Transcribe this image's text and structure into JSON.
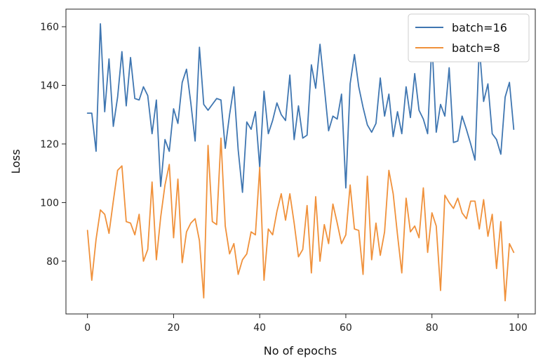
{
  "chart_data": {
    "type": "line",
    "xlabel": "No of epochs",
    "ylabel": "Loss",
    "xlim": [
      -5,
      104
    ],
    "ylim": [
      62,
      166
    ],
    "xticks": [
      0,
      20,
      40,
      60,
      80,
      100
    ],
    "yticks": [
      80,
      100,
      120,
      140,
      160
    ],
    "grid": false,
    "legend_position": "top-right",
    "series": [
      {
        "name": "batch=16",
        "color": "#3f76b1",
        "x": [
          0,
          1,
          2,
          3,
          4,
          5,
          6,
          7,
          8,
          9,
          10,
          11,
          12,
          13,
          14,
          15,
          16,
          17,
          18,
          19,
          20,
          21,
          22,
          23,
          24,
          25,
          26,
          27,
          28,
          29,
          30,
          31,
          32,
          33,
          34,
          35,
          36,
          37,
          38,
          39,
          40,
          41,
          42,
          43,
          44,
          45,
          46,
          47,
          48,
          49,
          50,
          51,
          52,
          53,
          54,
          55,
          56,
          57,
          58,
          59,
          60,
          61,
          62,
          63,
          64,
          65,
          66,
          67,
          68,
          69,
          70,
          71,
          72,
          73,
          74,
          75,
          76,
          77,
          78,
          79,
          80,
          81,
          82,
          83,
          84,
          85,
          86,
          87,
          88,
          89,
          90,
          91,
          92,
          93,
          94,
          95,
          96,
          97,
          98,
          99
        ],
        "values": [
          130.5,
          130.5,
          117.5,
          161,
          131,
          149,
          126,
          136,
          151.5,
          133,
          149.5,
          135.5,
          135,
          139.5,
          136.5,
          123.5,
          135,
          105.5,
          121.5,
          117.5,
          132,
          127,
          141,
          145.5,
          134,
          121,
          153,
          133.5,
          131.5,
          133.5,
          135.5,
          135,
          118.5,
          130,
          139.5,
          118,
          103.5,
          127.5,
          125,
          131,
          112,
          138,
          123.5,
          128,
          134,
          130,
          128,
          143.5,
          121.5,
          133,
          122,
          123,
          147,
          139,
          154,
          139.5,
          124.5,
          129.5,
          128.5,
          137,
          105,
          140.5,
          150.5,
          139.5,
          132.5,
          126.5,
          124,
          127,
          142.5,
          129.5,
          137,
          122.5,
          131,
          123.5,
          139.5,
          129,
          144,
          131.5,
          128.5,
          123.5,
          155,
          124,
          133.5,
          129.5,
          146,
          120.5,
          121,
          129.5,
          125,
          120,
          114.5,
          153.5,
          134.5,
          140.5,
          123.5,
          121.5,
          116.5,
          136,
          141,
          125
        ]
      },
      {
        "name": "batch=8",
        "color": "#f0913b",
        "x": [
          0,
          1,
          2,
          3,
          4,
          5,
          6,
          7,
          8,
          9,
          10,
          11,
          12,
          13,
          14,
          15,
          16,
          17,
          18,
          19,
          20,
          21,
          22,
          23,
          24,
          25,
          26,
          27,
          28,
          29,
          30,
          31,
          32,
          33,
          34,
          35,
          36,
          37,
          38,
          39,
          40,
          41,
          42,
          43,
          44,
          45,
          46,
          47,
          48,
          49,
          50,
          51,
          52,
          53,
          54,
          55,
          56,
          57,
          58,
          59,
          60,
          61,
          62,
          63,
          64,
          65,
          66,
          67,
          68,
          69,
          70,
          71,
          72,
          73,
          74,
          75,
          76,
          77,
          78,
          79,
          80,
          81,
          82,
          83,
          84,
          85,
          86,
          87,
          88,
          89,
          90,
          91,
          92,
          93,
          94,
          95,
          96,
          97,
          98,
          99
        ],
        "values": [
          90.5,
          73.5,
          87.5,
          97.5,
          96,
          89.5,
          100.5,
          111,
          112.5,
          93.5,
          93,
          89,
          96,
          80,
          84,
          107,
          80.5,
          95,
          106,
          113,
          88,
          108,
          79.5,
          90,
          93,
          94.5,
          87,
          67.5,
          119.5,
          93.5,
          92.5,
          122,
          92,
          82.5,
          86,
          75.5,
          80.5,
          82.5,
          90,
          89,
          112,
          73.5,
          91,
          89,
          97,
          103,
          94,
          103,
          93,
          81.5,
          84,
          99,
          76,
          102,
          80,
          92.5,
          86,
          99.5,
          93,
          86,
          89,
          106,
          91,
          90.5,
          75.5,
          109,
          80.5,
          93,
          82,
          90,
          111,
          103,
          89,
          76,
          101.5,
          90,
          92,
          88,
          105,
          83,
          96.5,
          92,
          70,
          102.5,
          100,
          98,
          101.5,
          96.5,
          94.5,
          100.5,
          100.5,
          91,
          101,
          88.5,
          96,
          77.5,
          93.5,
          66.5,
          86,
          83
        ]
      }
    ]
  }
}
